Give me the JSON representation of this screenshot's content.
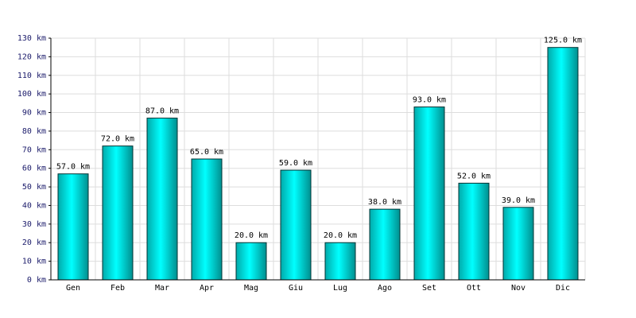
{
  "chart_data": {
    "type": "bar",
    "categories": [
      "Gen",
      "Feb",
      "Mar",
      "Apr",
      "Mag",
      "Giu",
      "Lug",
      "Ago",
      "Set",
      "Ott",
      "Nov",
      "Dic"
    ],
    "values": [
      57,
      72,
      87,
      65,
      20,
      59,
      20,
      38,
      93,
      52,
      39,
      125
    ],
    "value_labels": [
      "57.0 km",
      "72.0 km",
      "87.0 km",
      "65.0 km",
      "20.0 km",
      "59.0 km",
      "20.0 km",
      "38.0 km",
      "93.0 km",
      "52.0 km",
      "39.0 km",
      "125.0 km"
    ],
    "color": "#00cccc",
    "ylim": [
      0,
      130
    ],
    "yticks": [
      {
        "value": 0,
        "label": "0 km"
      },
      {
        "value": 10,
        "label": "10 km"
      },
      {
        "value": 20,
        "label": "20 km"
      },
      {
        "value": 30,
        "label": "30 km"
      },
      {
        "value": 40,
        "label": "40 km"
      },
      {
        "value": 50,
        "label": "50 km"
      },
      {
        "value": 60,
        "label": "60 km"
      },
      {
        "value": 70,
        "label": "70 km"
      },
      {
        "value": 80,
        "label": "80 km"
      },
      {
        "value": 90,
        "label": "90 km"
      },
      {
        "value": 100,
        "label": "100 km"
      },
      {
        "value": 110,
        "label": "110 km"
      },
      {
        "value": 120,
        "label": "120 km"
      },
      {
        "value": 130,
        "label": "130 km"
      }
    ],
    "grid": true
  }
}
